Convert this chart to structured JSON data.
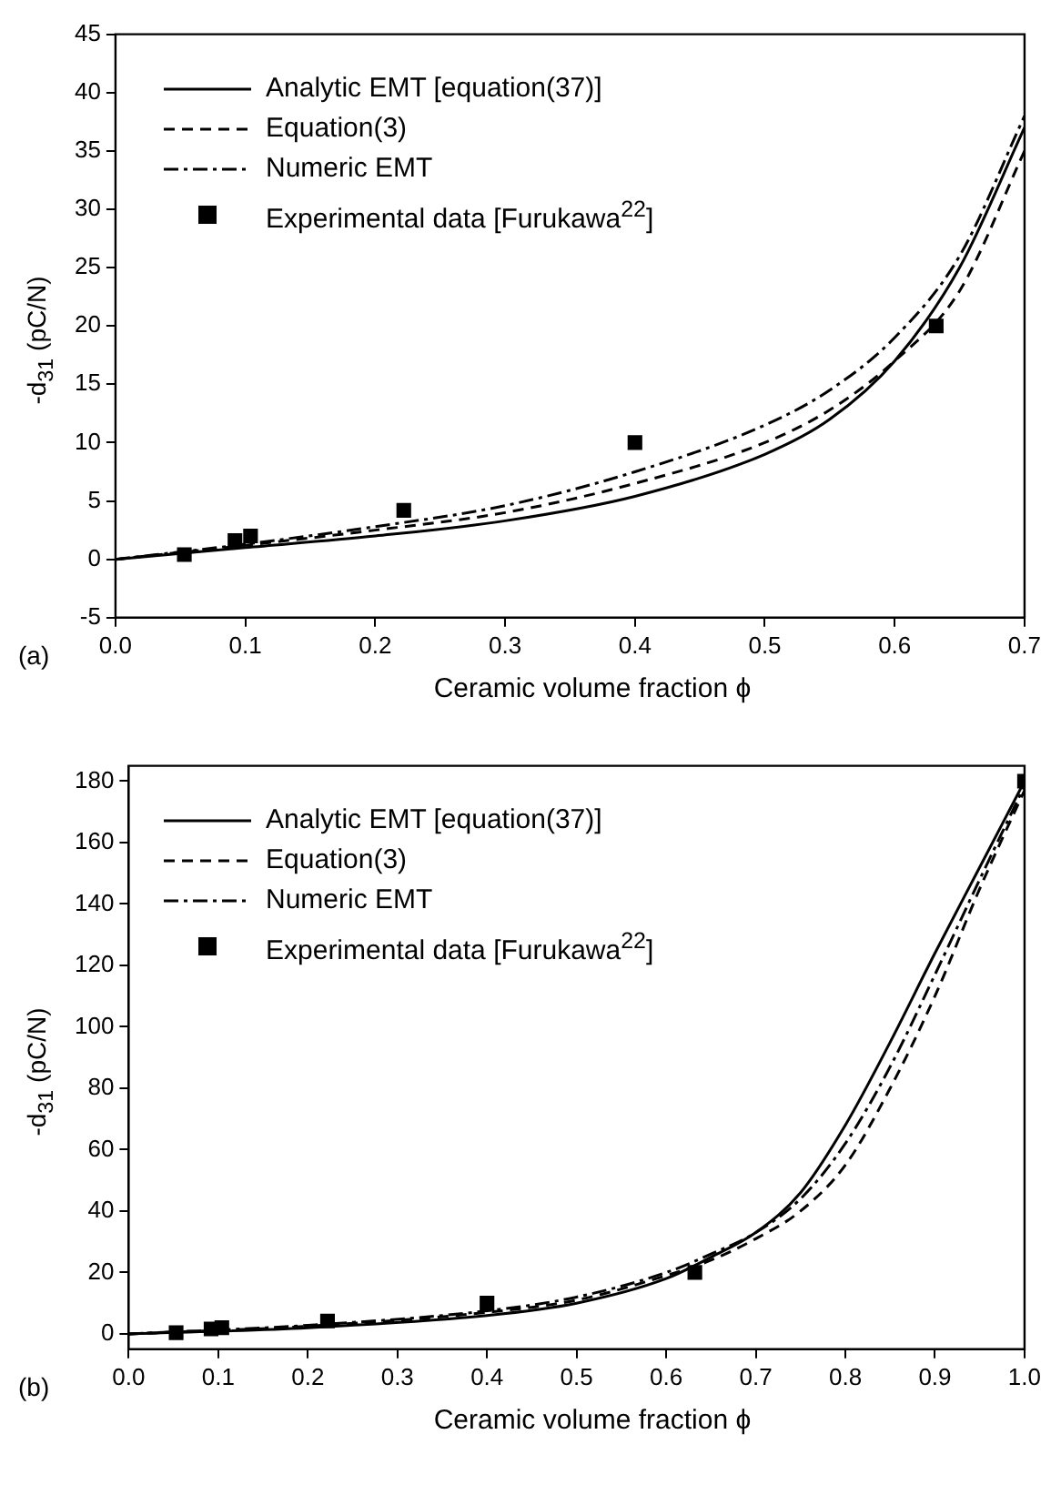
{
  "chart_data": [
    {
      "type": "line",
      "xlabel": "Ceramic volume fraction ϕ",
      "ylabel": "-d$_{31}$ (pC/N)",
      "annotations": [
        "(a)"
      ],
      "legend": "top left",
      "grid": false,
      "xlim": [
        0,
        0.7
      ],
      "xticks": [
        {
          "value": 0,
          "label": "0.0"
        },
        {
          "value": 0.1,
          "label": "0.1"
        },
        {
          "value": 0.2,
          "label": "0.2"
        },
        {
          "value": 0.3,
          "label": "0.3"
        },
        {
          "value": 0.4,
          "label": "0.4"
        },
        {
          "value": 0.5,
          "label": "0.5"
        },
        {
          "value": 0.6,
          "label": "0.6"
        },
        {
          "value": 0.7,
          "label": "0.7"
        }
      ],
      "ylim": [
        -5,
        45
      ],
      "yticks": [
        -5,
        0,
        5,
        10,
        15,
        20,
        25,
        30,
        35,
        40,
        45
      ],
      "series": [
        {
          "name": "Analytic EMT [equation(37)]",
          "color": "#000000",
          "line_style": "solid",
          "marker": "none",
          "x": [
            0,
            0.1,
            0.2,
            0.3,
            0.4,
            0.5,
            0.55,
            0.6,
            0.65,
            0.7
          ],
          "values": [
            0,
            1.0,
            2.0,
            3.3,
            5.4,
            9,
            12,
            17,
            25,
            37
          ]
        },
        {
          "name": "Equation(3)",
          "color": "#000000",
          "line_style": "dashed",
          "marker": "none",
          "x": [
            0,
            0.1,
            0.2,
            0.3,
            0.4,
            0.5,
            0.55,
            0.6,
            0.65,
            0.7
          ],
          "values": [
            0,
            1.2,
            2.5,
            4.0,
            6.5,
            10,
            12.8,
            17,
            23,
            35
          ]
        },
        {
          "name": "Numeric EMT",
          "color": "#000000",
          "line_style": "dashdot",
          "marker": "none",
          "x": [
            0,
            0.1,
            0.2,
            0.3,
            0.4,
            0.5,
            0.55,
            0.6,
            0.65,
            0.7
          ],
          "values": [
            0,
            1.3,
            2.8,
            4.6,
            7.5,
            11.5,
            14.5,
            19,
            26,
            38
          ]
        },
        {
          "name": "Experimental data [Furukawa$^{22}$]",
          "type": "scatter",
          "color": "#000000",
          "marker": "square",
          "x": [
            0.053,
            0.092,
            0.104,
            0.222,
            0.4,
            0.632
          ],
          "values": [
            0.4,
            1.6,
            2.0,
            4.2,
            10,
            20
          ]
        }
      ]
    },
    {
      "type": "line",
      "xlabel": "Ceramic volume fraction ϕ",
      "ylabel": "-d$_{31}$ (pC/N)",
      "annotations": [
        "(b)"
      ],
      "legend": "top left",
      "grid": false,
      "xlim": [
        0,
        1
      ],
      "xticks": [
        {
          "value": 0,
          "label": "0.0"
        },
        {
          "value": 0.1,
          "label": "0.1"
        },
        {
          "value": 0.2,
          "label": "0.2"
        },
        {
          "value": 0.3,
          "label": "0.3"
        },
        {
          "value": 0.4,
          "label": "0.4"
        },
        {
          "value": 0.5,
          "label": "0.5"
        },
        {
          "value": 0.6,
          "label": "0.6"
        },
        {
          "value": 0.7,
          "label": "0.7"
        },
        {
          "value": 0.8,
          "label": "0.8"
        },
        {
          "value": 0.9,
          "label": "0.9"
        },
        {
          "value": 1,
          "label": "1.0"
        }
      ],
      "ylim": [
        -5,
        185
      ],
      "yticks": [
        0,
        20,
        40,
        60,
        80,
        100,
        120,
        140,
        160,
        180
      ],
      "series": [
        {
          "name": "Analytic EMT [equation(37)]",
          "color": "#000000",
          "line_style": "solid",
          "marker": "none",
          "x": [
            0,
            0.2,
            0.4,
            0.5,
            0.6,
            0.65,
            0.7,
            0.75,
            0.8,
            0.85,
            0.9,
            0.95,
            1
          ],
          "values": [
            0,
            2,
            6,
            10,
            18,
            25,
            33,
            46,
            68,
            95,
            124,
            152,
            180
          ]
        },
        {
          "name": "Equation(3)",
          "color": "#000000",
          "line_style": "dashed",
          "marker": "none",
          "x": [
            0,
            0.2,
            0.4,
            0.5,
            0.6,
            0.65,
            0.7,
            0.75,
            0.8,
            0.85,
            0.9,
            0.95,
            1
          ],
          "values": [
            0,
            2.5,
            7,
            11,
            19,
            24,
            31,
            40,
            55,
            80,
            110,
            145,
            177
          ]
        },
        {
          "name": "Numeric EMT",
          "color": "#000000",
          "line_style": "dashdot",
          "marker": "none",
          "x": [
            0,
            0.2,
            0.4,
            0.5,
            0.6,
            0.65,
            0.7,
            0.75,
            0.8,
            0.85,
            0.9,
            0.95,
            1
          ],
          "values": [
            0,
            2.8,
            7.5,
            12,
            20,
            26,
            33,
            44,
            62,
            87,
            117,
            148,
            178.5
          ]
        },
        {
          "name": "Experimental data [Furukawa$^{22}$]",
          "type": "scatter",
          "color": "#000000",
          "marker": "square",
          "x": [
            0.053,
            0.092,
            0.104,
            0.222,
            0.4,
            0.632,
            1.0
          ],
          "values": [
            0.4,
            1.6,
            2.0,
            4.2,
            10,
            20,
            180
          ]
        }
      ]
    }
  ]
}
